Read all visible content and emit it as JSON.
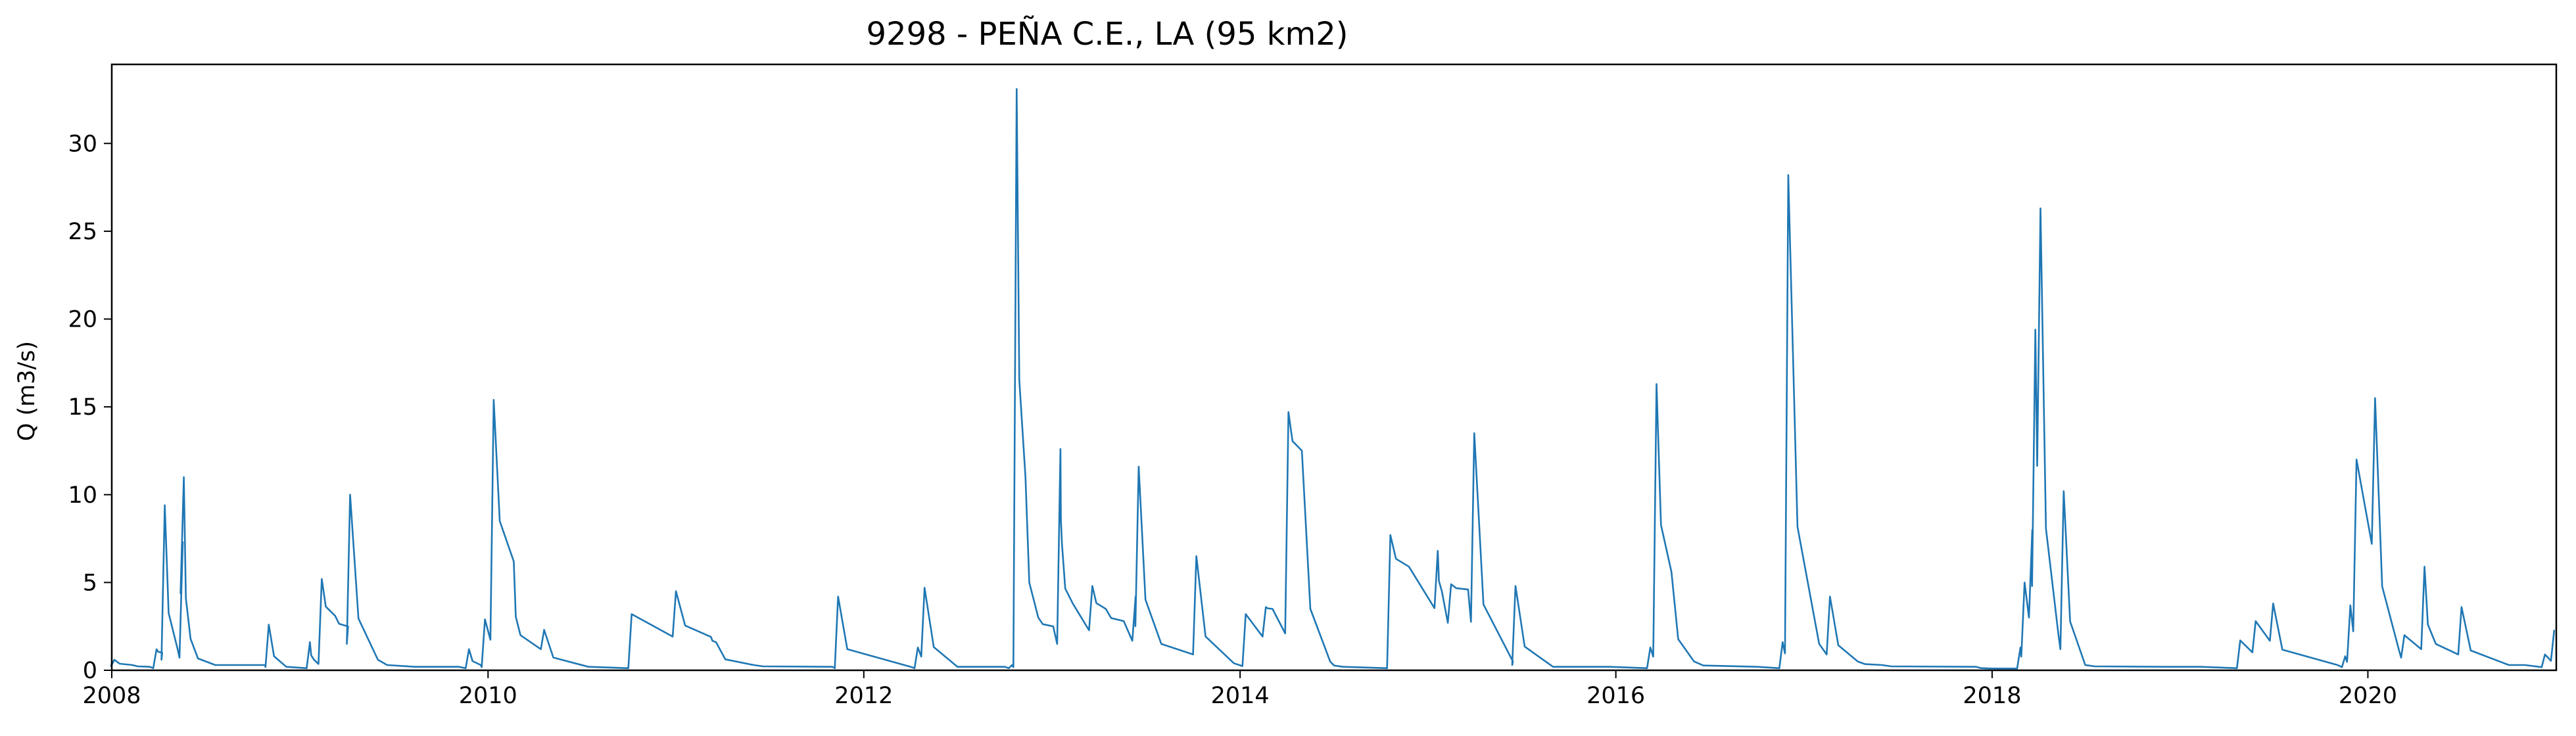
{
  "chart_data": {
    "type": "line",
    "title": "9298 - PEÑA C.E., LA (95 km2)",
    "xlabel": "",
    "ylabel": "Q (m3/s)",
    "xlim": [
      "2008-01-01",
      "2021-01-01"
    ],
    "ylim": [
      0,
      34.5
    ],
    "x_ticks": [
      "2008",
      "2010",
      "2012",
      "2014",
      "2016",
      "2018",
      "2020"
    ],
    "y_ticks": [
      0,
      5,
      10,
      15,
      20,
      25,
      30
    ],
    "grid": false,
    "legend": "none",
    "series": [
      {
        "color": "#1f77b4",
        "x": [
          "2008-01-01",
          "2008-01-06",
          "2008-02-10",
          "2008-03-15",
          "2008-03-28",
          "2008-04-08",
          "2008-04-13",
          "2008-05-08",
          "2008-05-18",
          "2008-05-20",
          "2008-06-02",
          "2008-07-20",
          "2008-10-25",
          "2008-11-01",
          "2008-12-05",
          "2009-01-20",
          "2009-01-28",
          "2009-02-12",
          "2009-03-10",
          "2009-04-04",
          "2009-04-08",
          "2009-06-01",
          "2009-08-12",
          "2009-11-05",
          "2009-11-25",
          "2009-12-18",
          "2009-12-26",
          "2010-01-12",
          "2010-02-20",
          "2010-03-05",
          "2010-04-20",
          "2010-07-15",
          "2010-10-07",
          "2011-01-01",
          "2011-03-10",
          "2011-03-20",
          "2011-06-01",
          "2011-11-01",
          "2011-11-12",
          "2012-04-01",
          "2012-04-15",
          "2012-04-28",
          "2012-07-01",
          "2012-10-01",
          "2012-10-15",
          "2012-10-24",
          "2012-11-10",
          "2012-12-05",
          "2013-01-03",
          "2013-01-17",
          "2013-01-20",
          "2013-02-10",
          "2013-03-20",
          "2013-04-15",
          "2013-05-20",
          "2013-06-12",
          "2013-06-18",
          "2013-08-01",
          "2013-10-08",
          "2013-12-20",
          "2014-01-12",
          "2014-02-20",
          "2014-03-05",
          "2014-04-05",
          "2014-05-01",
          "2014-06-25",
          "2014-07-20",
          "2014-10-20",
          "2014-11-25",
          "2015-01-20",
          "2015-01-28",
          "2015-02-15",
          "2015-03-20",
          "2015-04-01",
          "2015-06-15",
          "2015-06-20",
          "2015-09-01",
          "2015-12-20",
          "2016-03-08",
          "2016-03-20",
          "2016-04-18",
          "2016-06-01",
          "2016-10-01",
          "2016-11-20",
          "2016-12-01",
          "2017-01-30",
          "2017-02-20",
          "2017-04-15",
          "2017-06-01",
          "2017-12-01",
          "2018-01-01",
          "2018-02-25",
          "2018-03-05",
          "2018-03-20",
          "2018-03-26",
          "2018-04-05",
          "2018-05-10",
          "2018-05-20",
          "2018-07-01",
          "2018-12-01",
          "2019-02-10",
          "2019-04-28",
          "2019-05-28",
          "2019-07-01",
          "2019-11-03",
          "2019-11-18",
          "2019-11-28",
          "2019-12-10",
          "2020-01-15",
          "2020-03-01",
          "2020-03-12",
          "2020-04-20",
          "2020-05-12",
          "2020-07-01",
          "2020-10-01",
          "2020-11-01",
          "2020-12-10",
          "2020-12-28"
        ],
        "y": [
          0.4,
          0.6,
          0.3,
          0.2,
          1.2,
          1.0,
          9.4,
          1.2,
          7.3,
          11.0,
          1.8,
          0.3,
          0.3,
          2.6,
          0.2,
          1.6,
          0.6,
          5.2,
          3.1,
          2.5,
          10.0,
          0.6,
          0.2,
          0.2,
          1.2,
          0.3,
          2.9,
          15.4,
          6.2,
          2.0,
          2.3,
          0.2,
          3.2,
          4.5,
          1.9,
          1.6,
          0.3,
          0.2,
          4.2,
          0.2,
          1.3,
          4.7,
          0.2,
          0.2,
          0.3,
          33.1,
          11.0,
          3.0,
          2.5,
          12.6,
          7.2,
          3.8,
          4.8,
          3.5,
          2.8,
          4.2,
          11.6,
          1.5,
          6.5,
          0.4,
          3.2,
          3.6,
          3.5,
          14.7,
          12.5,
          0.5,
          0.2,
          7.7,
          5.9,
          6.8,
          4.5,
          4.9,
          4.6,
          13.5,
          0.5,
          4.8,
          0.2,
          0.2,
          1.3,
          16.3,
          5.6,
          0.5,
          0.2,
          1.6,
          28.2,
          1.5,
          4.2,
          0.5,
          0.3,
          0.2,
          0.1,
          1.3,
          5.0,
          8.0,
          19.4,
          26.3,
          2.0,
          10.2,
          0.3,
          0.2,
          0.2,
          1.7,
          2.8,
          3.8,
          0.3,
          0.8,
          3.7,
          12.0,
          15.5,
          1.2,
          2.0,
          5.9,
          1.5,
          3.6,
          0.3,
          0.3,
          0.9,
          2.3
        ]
      }
    ]
  }
}
